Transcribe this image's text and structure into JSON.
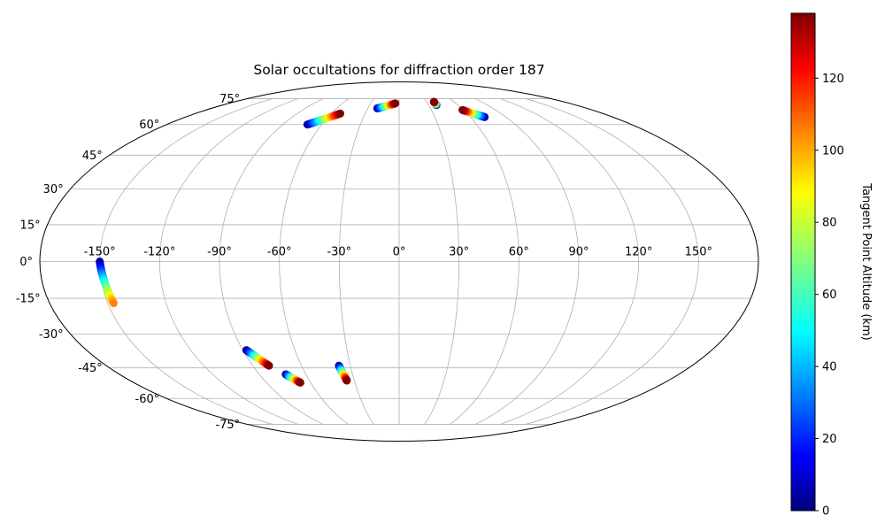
{
  "chart_data": {
    "type": "scatter",
    "projection": "mollweide",
    "title": "Solar occultations for diffraction order 187",
    "grid": true,
    "lon_ticks": [
      -150,
      -120,
      -90,
      -60,
      -30,
      0,
      30,
      60,
      90,
      120,
      150
    ],
    "lon_tick_labels": [
      "-150°",
      "-120°",
      "-90°",
      "-60°",
      "-30°",
      "0°",
      "30°",
      "60°",
      "90°",
      "120°",
      "150°"
    ],
    "lat_ticks": [
      -75,
      -60,
      -45,
      -30,
      -15,
      0,
      15,
      30,
      45,
      60,
      75
    ],
    "lat_tick_labels": [
      "-75°",
      "-60°",
      "-45°",
      "-30°",
      "-15°",
      "0°",
      "15°",
      "30°",
      "45°",
      "60°",
      "75°"
    ],
    "colorbar": {
      "label": "Tangent Point Altitude (km)",
      "range": [
        0,
        138
      ],
      "ticks": [
        0,
        20,
        40,
        60,
        80,
        100,
        120
      ],
      "tick_labels": [
        "0",
        "20",
        "40",
        "60",
        "80",
        "100",
        "120"
      ],
      "colormap": "jet"
    },
    "tracks": [
      {
        "start": {
          "lon": -150,
          "lat": 0,
          "alt": 0
        },
        "end": {
          "lon": -147,
          "lat": -17,
          "alt": 105
        }
      },
      {
        "start": {
          "lon": -71,
          "lat": 60,
          "alt": 0
        },
        "end": {
          "lon": -52,
          "lat": 66,
          "alt": 138
        }
      },
      {
        "start": {
          "lon": -21,
          "lat": 69,
          "alt": 0
        },
        "end": {
          "lon": -4,
          "lat": 72,
          "alt": 138
        }
      },
      {
        "start": {
          "lon": 38,
          "lat": 71,
          "alt": 0
        },
        "end": {
          "lon": 38,
          "lat": 73,
          "alt": 138
        }
      },
      {
        "start": {
          "lon": 72,
          "lat": 64,
          "alt": 0
        },
        "end": {
          "lon": 59,
          "lat": 68,
          "alt": 138
        }
      },
      {
        "start": {
          "lon": -88,
          "lat": -37,
          "alt": 0
        },
        "end": {
          "lon": -80,
          "lat": -44,
          "alt": 138
        }
      },
      {
        "start": {
          "lon": -73,
          "lat": -48,
          "alt": 0
        },
        "end": {
          "lon": -67,
          "lat": -52,
          "alt": 138
        }
      },
      {
        "start": {
          "lon": -37,
          "lat": -44,
          "alt": 0
        },
        "end": {
          "lon": -35,
          "lat": -51,
          "alt": 138
        }
      }
    ]
  }
}
